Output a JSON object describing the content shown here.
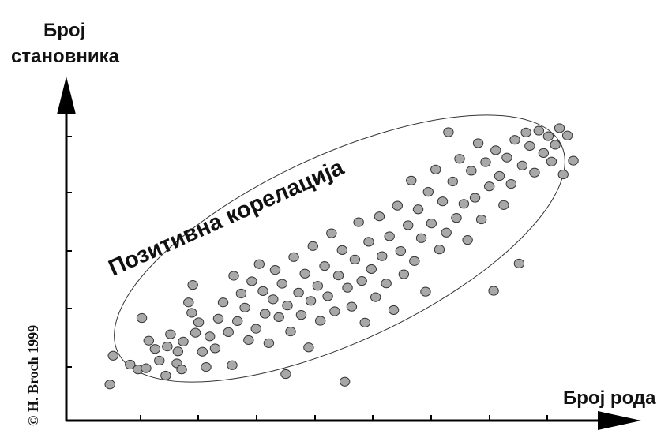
{
  "chart_data": {
    "type": "scatter",
    "title": "",
    "xlabel": "Број рода",
    "ylabel": "Број становника",
    "annotation": "Позитивна корелација",
    "copyright": "© H. Broch 1999",
    "xlim": [
      0,
      100
    ],
    "ylim": [
      0,
      100
    ],
    "tick_labels": false,
    "grid": false,
    "colors": {
      "point_fill": "#a8a8a8",
      "point_stroke": "#333333",
      "axis": "#000000",
      "ellipse": "#333333"
    },
    "points": [
      {
        "x": 8.2,
        "y": 11.8
      },
      {
        "x": 8.8,
        "y": 21.2
      },
      {
        "x": 12.0,
        "y": 18.3
      },
      {
        "x": 13.5,
        "y": 16.7
      },
      {
        "x": 14.2,
        "y": 33.5
      },
      {
        "x": 15.0,
        "y": 17.1
      },
      {
        "x": 15.5,
        "y": 26.1
      },
      {
        "x": 17.5,
        "y": 19.6
      },
      {
        "x": 16.7,
        "y": 23.4
      },
      {
        "x": 18.7,
        "y": 14.7
      },
      {
        "x": 19.0,
        "y": 24.2
      },
      {
        "x": 19.6,
        "y": 28.2
      },
      {
        "x": 20.8,
        "y": 18.7
      },
      {
        "x": 21.0,
        "y": 22.6
      },
      {
        "x": 21.7,
        "y": 16.7
      },
      {
        "x": 22.0,
        "y": 25.8
      },
      {
        "x": 23.0,
        "y": 38.6
      },
      {
        "x": 23.6,
        "y": 35.2
      },
      {
        "x": 23.8,
        "y": 44.3
      },
      {
        "x": 24.3,
        "y": 28.7
      },
      {
        "x": 24.9,
        "y": 32.1
      },
      {
        "x": 25.6,
        "y": 22.5
      },
      {
        "x": 26.3,
        "y": 17.5
      },
      {
        "x": 27.0,
        "y": 27.5
      },
      {
        "x": 28.0,
        "y": 23.6
      },
      {
        "x": 28.6,
        "y": 33.3
      },
      {
        "x": 29.5,
        "y": 38.6
      },
      {
        "x": 30.5,
        "y": 28.9
      },
      {
        "x": 31.2,
        "y": 18.1
      },
      {
        "x": 31.5,
        "y": 47.3
      },
      {
        "x": 32.2,
        "y": 32.5
      },
      {
        "x": 32.9,
        "y": 41.5
      },
      {
        "x": 33.6,
        "y": 36.9
      },
      {
        "x": 34.3,
        "y": 26.3
      },
      {
        "x": 34.9,
        "y": 45.5
      },
      {
        "x": 35.7,
        "y": 30.0
      },
      {
        "x": 36.3,
        "y": 51.1
      },
      {
        "x": 37.0,
        "y": 42.3
      },
      {
        "x": 37.4,
        "y": 34.9
      },
      {
        "x": 38.1,
        "y": 25.3
      },
      {
        "x": 38.9,
        "y": 39.6
      },
      {
        "x": 39.3,
        "y": 49.2
      },
      {
        "x": 40.0,
        "y": 33.8
      },
      {
        "x": 40.6,
        "y": 44.7
      },
      {
        "x": 41.3,
        "y": 15.2
      },
      {
        "x": 41.6,
        "y": 37.6
      },
      {
        "x": 42.2,
        "y": 29.1
      },
      {
        "x": 42.8,
        "y": 53.4
      },
      {
        "x": 43.7,
        "y": 41.8
      },
      {
        "x": 44.2,
        "y": 34.5
      },
      {
        "x": 44.9,
        "y": 48.0
      },
      {
        "x": 45.6,
        "y": 23.9
      },
      {
        "x": 46.0,
        "y": 39.1
      },
      {
        "x": 46.4,
        "y": 57.0
      },
      {
        "x": 47.3,
        "y": 44.0
      },
      {
        "x": 47.8,
        "y": 32.6
      },
      {
        "x": 48.6,
        "y": 50.5
      },
      {
        "x": 49.2,
        "y": 40.6
      },
      {
        "x": 49.9,
        "y": 61.2
      },
      {
        "x": 50.5,
        "y": 35.7
      },
      {
        "x": 51.2,
        "y": 47.4
      },
      {
        "x": 51.9,
        "y": 55.7
      },
      {
        "x": 52.4,
        "y": 12.7
      },
      {
        "x": 52.9,
        "y": 43.4
      },
      {
        "x": 53.7,
        "y": 37.2
      },
      {
        "x": 54.3,
        "y": 52.6
      },
      {
        "x": 55.0,
        "y": 64.8
      },
      {
        "x": 55.6,
        "y": 45.6
      },
      {
        "x": 56.2,
        "y": 32.0
      },
      {
        "x": 56.9,
        "y": 58.4
      },
      {
        "x": 57.4,
        "y": 49.5
      },
      {
        "x": 58.2,
        "y": 40.3
      },
      {
        "x": 58.9,
        "y": 66.7
      },
      {
        "x": 59.4,
        "y": 53.7
      },
      {
        "x": 60.2,
        "y": 44.8
      },
      {
        "x": 60.8,
        "y": 60.2
      },
      {
        "x": 61.6,
        "y": 36.1
      },
      {
        "x": 62.3,
        "y": 70.2
      },
      {
        "x": 62.9,
        "y": 55.4
      },
      {
        "x": 63.5,
        "y": 47.8
      },
      {
        "x": 64.3,
        "y": 63.8
      },
      {
        "x": 64.9,
        "y": 78.4
      },
      {
        "x": 65.5,
        "y": 52.1
      },
      {
        "x": 66.2,
        "y": 69.0
      },
      {
        "x": 66.8,
        "y": 59.6
      },
      {
        "x": 67.6,
        "y": 42.1
      },
      {
        "x": 68.1,
        "y": 74.7
      },
      {
        "x": 68.7,
        "y": 64.4
      },
      {
        "x": 69.5,
        "y": 82.0
      },
      {
        "x": 70.2,
        "y": 55.9
      },
      {
        "x": 70.8,
        "y": 71.6
      },
      {
        "x": 71.5,
        "y": 61.4
      },
      {
        "x": 71.9,
        "y": 94.2
      },
      {
        "x": 72.7,
        "y": 78.1
      },
      {
        "x": 73.4,
        "y": 66.2
      },
      {
        "x": 74.0,
        "y": 85.5
      },
      {
        "x": 74.8,
        "y": 70.8
      },
      {
        "x": 75.5,
        "y": 59.0
      },
      {
        "x": 76.2,
        "y": 81.6
      },
      {
        "x": 76.9,
        "y": 72.8
      },
      {
        "x": 77.5,
        "y": 90.6
      },
      {
        "x": 78.1,
        "y": 65.7
      },
      {
        "x": 78.9,
        "y": 84.4
      },
      {
        "x": 79.6,
        "y": 76.5
      },
      {
        "x": 80.4,
        "y": 42.4
      },
      {
        "x": 80.8,
        "y": 88.3
      },
      {
        "x": 81.5,
        "y": 79.9
      },
      {
        "x": 82.3,
        "y": 70.4
      },
      {
        "x": 82.9,
        "y": 85.9
      },
      {
        "x": 83.7,
        "y": 77.3
      },
      {
        "x": 84.4,
        "y": 91.7
      },
      {
        "x": 85.2,
        "y": 51.3
      },
      {
        "x": 85.8,
        "y": 83.3
      },
      {
        "x": 86.5,
        "y": 94.1
      },
      {
        "x": 87.2,
        "y": 89.7
      },
      {
        "x": 88.1,
        "y": 81.0
      },
      {
        "x": 88.9,
        "y": 94.7
      },
      {
        "x": 89.8,
        "y": 87.4
      },
      {
        "x": 90.7,
        "y": 92.9
      },
      {
        "x": 91.3,
        "y": 84.6
      },
      {
        "x": 92.0,
        "y": 90.1
      },
      {
        "x": 92.8,
        "y": 95.5
      },
      {
        "x": 93.5,
        "y": 80.4
      },
      {
        "x": 94.3,
        "y": 93.1
      },
      {
        "x": 95.4,
        "y": 84.9
      }
    ]
  }
}
